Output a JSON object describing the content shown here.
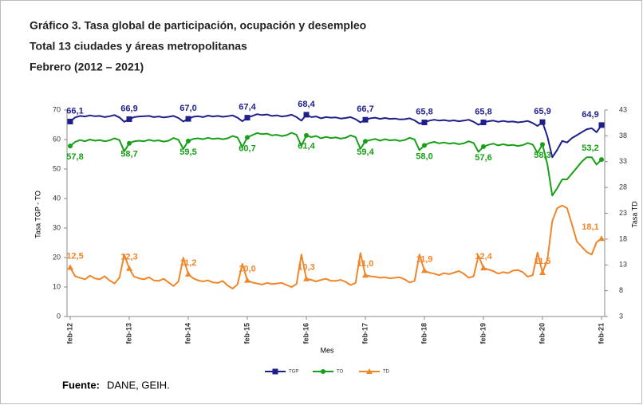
{
  "chart_data": {
    "type": "line",
    "title": "Gráfico 3. Tasa global de participación, ocupación y desempleo",
    "subtitle": "Total 13 ciudades y áreas metropolitanas",
    "period": "Febrero (2012 – 2021)",
    "x_label": "Mes",
    "y_label": "Tasa TGP - TO",
    "y2_label": "Tasa TD",
    "source_label": "Fuente:",
    "source": "DANE, GEIH.",
    "categories": [
      "feb-12",
      null,
      null,
      null,
      null,
      null,
      null,
      null,
      null,
      null,
      null,
      null,
      "feb-13",
      null,
      null,
      null,
      null,
      null,
      null,
      null,
      null,
      null,
      null,
      null,
      "feb-14",
      null,
      null,
      null,
      null,
      null,
      null,
      null,
      null,
      null,
      null,
      null,
      "feb-15",
      null,
      null,
      null,
      null,
      null,
      null,
      null,
      null,
      null,
      null,
      null,
      "feb-16",
      null,
      null,
      null,
      null,
      null,
      null,
      null,
      null,
      null,
      null,
      null,
      "feb-17",
      null,
      null,
      null,
      null,
      null,
      null,
      null,
      null,
      null,
      null,
      null,
      "feb-18",
      null,
      null,
      null,
      null,
      null,
      null,
      null,
      null,
      null,
      null,
      null,
      "feb-19",
      null,
      null,
      null,
      null,
      null,
      null,
      null,
      null,
      null,
      null,
      null,
      "feb-20",
      null,
      null,
      null,
      null,
      null,
      null,
      null,
      null,
      null,
      null,
      null,
      "feb-21"
    ],
    "ylim": [
      0,
      70
    ],
    "yticks": [
      0,
      10,
      20,
      30,
      40,
      50,
      60,
      70
    ],
    "y2lim": [
      3,
      43
    ],
    "y2ticks": [
      3,
      8,
      13,
      18,
      23,
      28,
      33,
      38,
      43
    ],
    "legend": "bottom",
    "series": [
      {
        "name": "TGP",
        "color": "#1f1f8c",
        "marker": "square",
        "values": [
          66.1,
          67.5,
          68.0,
          67.8,
          68.2,
          67.9,
          68.0,
          67.6,
          67.9,
          68.3,
          67.5,
          66.0,
          66.9,
          67.6,
          67.8,
          67.9,
          68.0,
          67.6,
          67.8,
          67.5,
          67.7,
          68.0,
          67.3,
          66.1,
          67.0,
          67.7,
          67.9,
          67.6,
          68.1,
          67.8,
          68.0,
          67.7,
          67.9,
          68.2,
          67.4,
          66.2,
          67.4,
          68.0,
          68.6,
          68.3,
          68.5,
          68.0,
          68.2,
          67.8,
          68.0,
          68.4,
          67.6,
          66.4,
          68.4,
          67.6,
          67.8,
          67.2,
          67.6,
          67.4,
          67.5,
          67.1,
          67.3,
          67.6,
          66.9,
          65.8,
          66.7,
          67.2,
          67.4,
          67.0,
          67.3,
          67.0,
          67.1,
          66.8,
          66.9,
          67.2,
          66.5,
          65.4,
          65.8,
          66.4,
          66.7,
          66.4,
          66.6,
          66.3,
          66.5,
          66.2,
          66.4,
          66.7,
          66.0,
          65.0,
          65.8,
          66.2,
          66.4,
          66.0,
          66.3,
          66.0,
          66.1,
          65.8,
          66.0,
          66.3,
          65.6,
          64.6,
          65.9,
          61.0,
          54.0,
          56.5,
          59.5,
          59.0,
          60.5,
          61.5,
          62.5,
          63.5,
          63.8,
          62.5,
          64.9
        ],
        "value_labels": [
          "66,1",
          null,
          null,
          null,
          null,
          null,
          null,
          null,
          null,
          null,
          null,
          null,
          "66,9",
          null,
          null,
          null,
          null,
          null,
          null,
          null,
          null,
          null,
          null,
          null,
          "67,0",
          null,
          null,
          null,
          null,
          null,
          null,
          null,
          null,
          null,
          null,
          null,
          "67,4",
          null,
          null,
          null,
          null,
          null,
          null,
          null,
          null,
          null,
          null,
          null,
          "68,4",
          null,
          null,
          null,
          null,
          null,
          null,
          null,
          null,
          null,
          null,
          null,
          "66,7",
          null,
          null,
          null,
          null,
          null,
          null,
          null,
          null,
          null,
          null,
          null,
          "65,8",
          null,
          null,
          null,
          null,
          null,
          null,
          null,
          null,
          null,
          null,
          null,
          "65,8",
          null,
          null,
          null,
          null,
          null,
          null,
          null,
          null,
          null,
          null,
          null,
          "65,9",
          null,
          null,
          null,
          null,
          null,
          null,
          null,
          null,
          null,
          null,
          null,
          "64,9"
        ]
      },
      {
        "name": "TO",
        "color": "#17a017",
        "marker": "circle",
        "values": [
          57.8,
          59.2,
          59.8,
          59.4,
          60.0,
          59.6,
          59.8,
          59.4,
          59.7,
          60.4,
          59.8,
          56.0,
          58.7,
          59.4,
          59.6,
          59.4,
          59.9,
          59.5,
          59.7,
          59.3,
          59.6,
          60.5,
          59.9,
          56.8,
          59.5,
          60.2,
          60.4,
          60.1,
          60.6,
          60.2,
          60.4,
          60.1,
          60.4,
          61.2,
          60.7,
          57.5,
          60.7,
          61.5,
          62.2,
          61.8,
          62.0,
          61.4,
          61.6,
          61.2,
          61.5,
          62.3,
          61.6,
          57.8,
          61.4,
          60.8,
          61.2,
          60.4,
          60.9,
          60.5,
          60.7,
          60.3,
          60.6,
          61.4,
          60.8,
          56.8,
          59.4,
          59.8,
          60.2,
          59.6,
          60.1,
          59.7,
          59.9,
          59.5,
          59.8,
          60.6,
          60.0,
          56.4,
          58.0,
          58.8,
          59.2,
          58.7,
          59.0,
          58.6,
          58.8,
          58.4,
          58.7,
          59.4,
          58.8,
          55.8,
          57.6,
          58.2,
          58.6,
          58.0,
          58.4,
          58.0,
          58.2,
          57.8,
          58.1,
          58.8,
          58.3,
          55.4,
          58.3,
          51.5,
          41.0,
          43.5,
          46.5,
          46.5,
          48.5,
          50.5,
          52.5,
          54.0,
          54.0,
          51.5,
          53.2
        ],
        "value_labels": [
          "57,8",
          null,
          null,
          null,
          null,
          null,
          null,
          null,
          null,
          null,
          null,
          null,
          "58,7",
          null,
          null,
          null,
          null,
          null,
          null,
          null,
          null,
          null,
          null,
          null,
          "59,5",
          null,
          null,
          null,
          null,
          null,
          null,
          null,
          null,
          null,
          null,
          null,
          "60,7",
          null,
          null,
          null,
          null,
          null,
          null,
          null,
          null,
          null,
          null,
          null,
          "61,4",
          null,
          null,
          null,
          null,
          null,
          null,
          null,
          null,
          null,
          null,
          null,
          "59,4",
          null,
          null,
          null,
          null,
          null,
          null,
          null,
          null,
          null,
          null,
          null,
          "58,0",
          null,
          null,
          null,
          null,
          null,
          null,
          null,
          null,
          null,
          null,
          null,
          "57,6",
          null,
          null,
          null,
          null,
          null,
          null,
          null,
          null,
          null,
          null,
          null,
          "58,3",
          null,
          null,
          null,
          null,
          null,
          null,
          null,
          null,
          null,
          null,
          null,
          "53,2"
        ]
      },
      {
        "name": "TD",
        "color": "#f0862a",
        "marker": "triangle",
        "axis": "y2",
        "values": [
          12.5,
          10.8,
          10.5,
          10.2,
          10.9,
          10.4,
          10.2,
          10.8,
          10.0,
          9.4,
          10.5,
          15.0,
          12.3,
          10.7,
          10.4,
          10.2,
          10.6,
          10.0,
          9.9,
          10.3,
          9.6,
          8.9,
          9.8,
          14.4,
          11.2,
          10.4,
          10.0,
          9.8,
          10.0,
          9.6,
          9.5,
          9.9,
          9.0,
          8.4,
          9.2,
          13.2,
          10.0,
          9.6,
          9.4,
          9.2,
          9.5,
          9.3,
          9.4,
          9.5,
          9.1,
          8.7,
          9.3,
          15.0,
          10.3,
          10.1,
          9.8,
          10.1,
          10.3,
          9.9,
          9.9,
          10.1,
          9.7,
          9.1,
          9.5,
          15.3,
          11.0,
          10.8,
          10.7,
          10.5,
          10.6,
          10.4,
          10.5,
          10.6,
          10.2,
          9.6,
          9.9,
          15.0,
          11.9,
          11.5,
          11.3,
          11.0,
          11.4,
          11.2,
          11.5,
          11.8,
          11.3,
          10.5,
          10.8,
          14.8,
          12.4,
          12.1,
          11.8,
          11.3,
          11.6,
          11.4,
          11.9,
          12.0,
          11.6,
          10.7,
          11.0,
          15.4,
          11.5,
          14.0,
          21.5,
          24.0,
          24.5,
          24.0,
          20.8,
          17.5,
          16.5,
          15.5,
          15.0,
          17.4,
          18.1
        ],
        "value_labels": [
          "12,5",
          null,
          null,
          null,
          null,
          null,
          null,
          null,
          null,
          null,
          null,
          null,
          "12,3",
          null,
          null,
          null,
          null,
          null,
          null,
          null,
          null,
          null,
          null,
          null,
          "11,2",
          null,
          null,
          null,
          null,
          null,
          null,
          null,
          null,
          null,
          null,
          null,
          "10,0",
          null,
          null,
          null,
          null,
          null,
          null,
          null,
          null,
          null,
          null,
          null,
          "10,3",
          null,
          null,
          null,
          null,
          null,
          null,
          null,
          null,
          null,
          null,
          null,
          "11,0",
          null,
          null,
          null,
          null,
          null,
          null,
          null,
          null,
          null,
          null,
          null,
          "11,9",
          null,
          null,
          null,
          null,
          null,
          null,
          null,
          null,
          null,
          null,
          null,
          "12,4",
          null,
          null,
          null,
          null,
          null,
          null,
          null,
          null,
          null,
          null,
          null,
          "11,5",
          null,
          null,
          null,
          null,
          null,
          null,
          null,
          null,
          null,
          null,
          null,
          "18,1"
        ]
      }
    ]
  }
}
